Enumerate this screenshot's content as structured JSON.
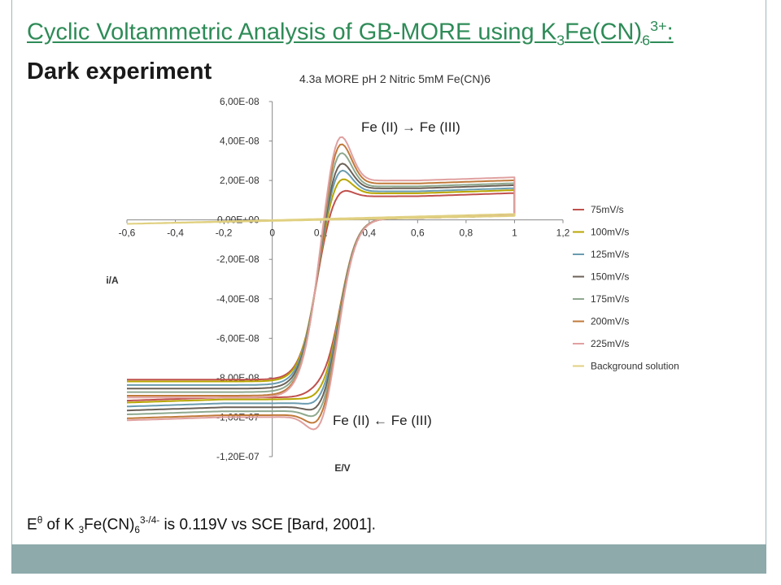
{
  "slide": {
    "title_pre": "Cyclic Voltammetric Analysis of GB-MORE using K",
    "title_sub3": "3",
    "title_mid": "Fe(CN)",
    "title_sub6": "6",
    "title_sup": "3+",
    "title_end": ":",
    "subtitle": "Dark experiment",
    "note_pre": "E",
    "note_sup_theta": "θ",
    "note_mid1": " of K ",
    "note_sub3": "3",
    "note_mid2": "Fe(CN)",
    "note_sub6": "6",
    "note_sup_charge": "3-/4-",
    "note_end": " is 0.119V vs SCE [Bard, 2001]."
  },
  "colors": {
    "title_green": "#2e8b57",
    "footer_bar": "#8eaaab"
  },
  "chart_data": {
    "type": "line",
    "title": "4.3a MORE pH 2 Nitric 5mM Fe(CN)6",
    "xlabel": "E/V",
    "ylabel": "i/A",
    "xlim": [
      -0.6,
      1.2
    ],
    "ylim": [
      -1.2e-07,
      6e-08
    ],
    "x_ticks": [
      "-0,6",
      "-0,4",
      "-0,2",
      "0",
      "0,2",
      "0,4",
      "0,6",
      "0,8",
      "1",
      "1,2"
    ],
    "y_ticks": [
      "6,00E-08",
      "4,00E-08",
      "2,00E-08",
      "0,00E+00",
      "-2,00E-08",
      "-4,00E-08",
      "-6,00E-08",
      "-8,00E-08",
      "-1,00E-07",
      "-1,20E-07"
    ],
    "legend_position": "right",
    "grid": false,
    "annotations": {
      "oxidation": "Fe (II) → Fe (III)",
      "reduction": "Fe (II) ← Fe (III)"
    },
    "series": [
      {
        "name": "75mV/s",
        "color": "#c0504d",
        "ox_peak": 1.9e-08,
        "ox_plateau": 1.2e-08,
        "red_peak": -8.8e-08,
        "red_plateau": -9e-08
      },
      {
        "name": "100mV/s",
        "color": "#b8a600",
        "ox_peak": 2.6e-08,
        "ox_plateau": 1.35e-08,
        "red_peak": -9.3e-08,
        "red_plateau": -9.1e-08
      },
      {
        "name": "125mV/s",
        "color": "#6a9cb0",
        "ox_peak": 3.1e-08,
        "ox_plateau": 1.45e-08,
        "red_peak": -9.7e-08,
        "red_plateau": -9.3e-08
      },
      {
        "name": "150mV/s",
        "color": "#6b6258",
        "ox_peak": 3.5e-08,
        "ox_plateau": 1.6e-08,
        "red_peak": -1.01e-07,
        "red_plateau": -9.5e-08
      },
      {
        "name": "175mV/s",
        "color": "#8ea88e",
        "ox_peak": 4.1e-08,
        "ox_plateau": 1.7e-08,
        "red_peak": -1.05e-07,
        "red_plateau": -9.7e-08
      },
      {
        "name": "200mV/s",
        "color": "#c07a3a",
        "ox_peak": 4.6e-08,
        "ox_plateau": 1.85e-08,
        "red_peak": -1.09e-07,
        "red_plateau": -9.9e-08
      },
      {
        "name": "225mV/s",
        "color": "#e0a0a0",
        "ox_peak": 5e-08,
        "ox_plateau": 2e-08,
        "red_peak": -1.13e-07,
        "red_plateau": -1e-07
      },
      {
        "name": "Background solution",
        "color": "#e0d080",
        "ox_peak": 0,
        "ox_plateau": 3e-09,
        "red_peak": -1e-09,
        "red_plateau": -1e-09
      }
    ]
  }
}
